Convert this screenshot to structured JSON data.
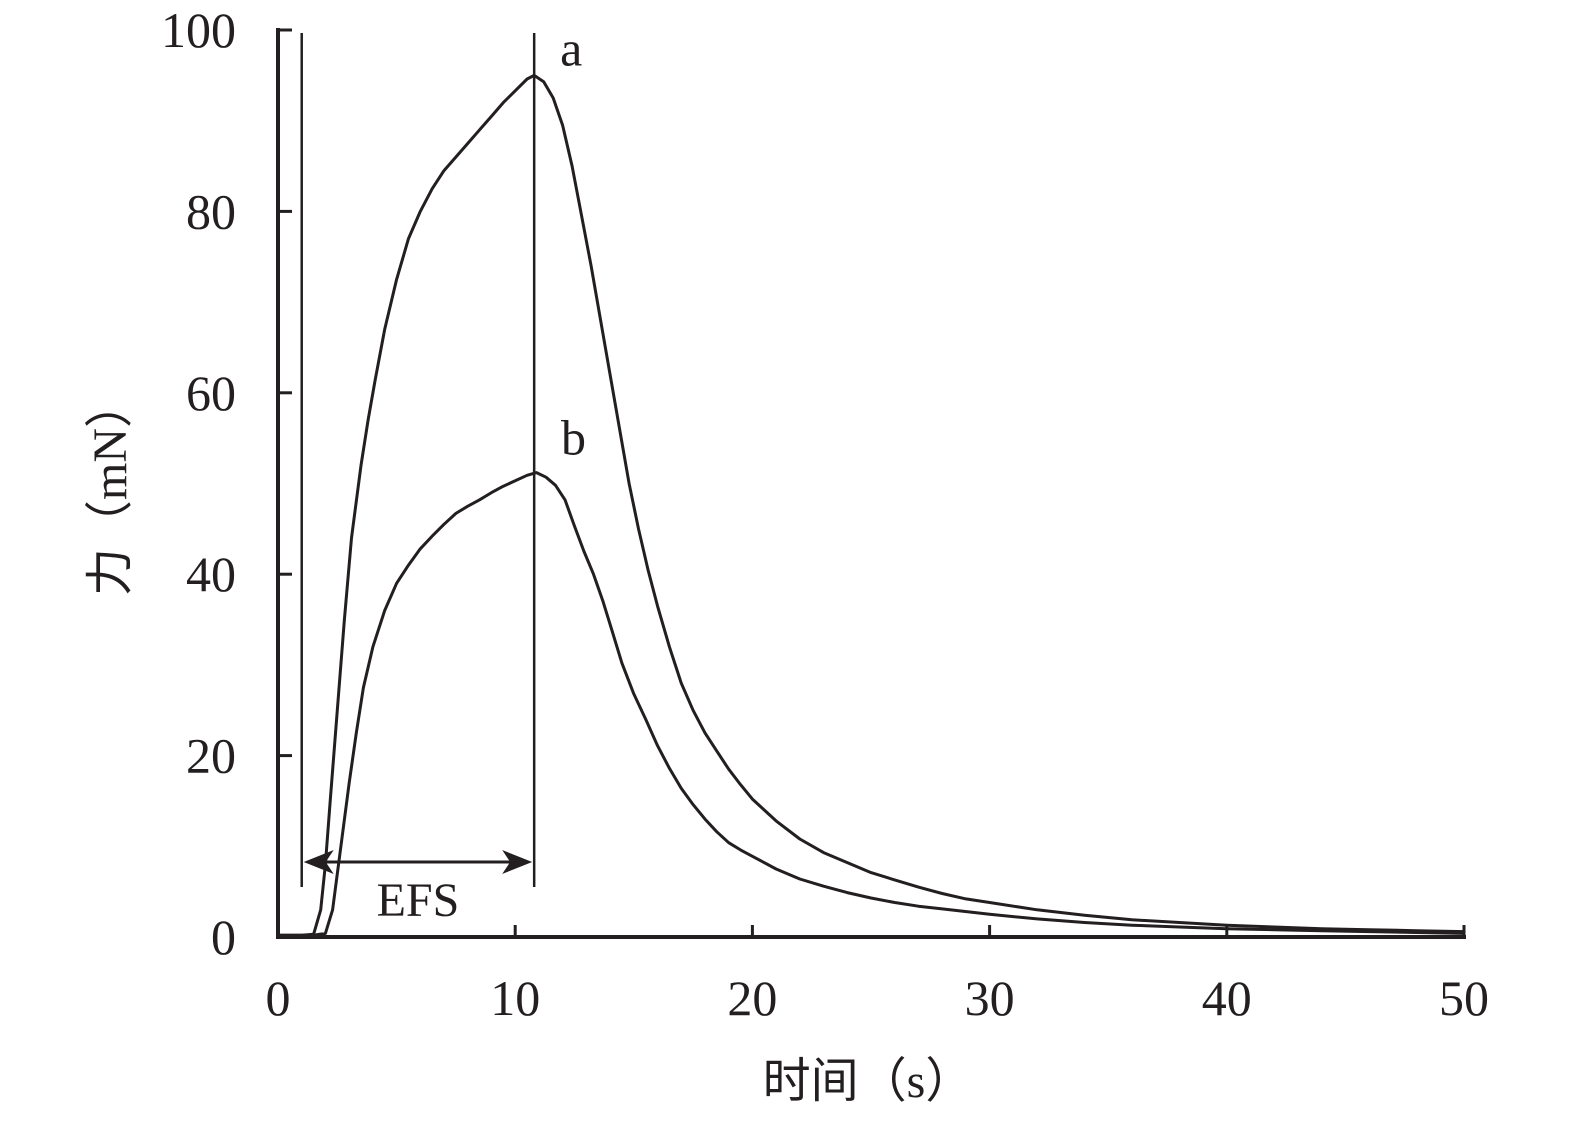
{
  "colors": {
    "ink": "#231f20",
    "background": "#ffffff"
  },
  "chart_data": {
    "type": "line",
    "title": "",
    "xlabel": "时间（s）",
    "ylabel": "力（mN）",
    "xlim": [
      0,
      50
    ],
    "ylim": [
      0,
      100
    ],
    "xticks": [
      0,
      10,
      20,
      30,
      40,
      50
    ],
    "yticks": [
      0,
      20,
      40,
      60,
      80,
      100
    ],
    "grid": false,
    "legend": "none",
    "series": [
      {
        "name": "a",
        "x": [
          0,
          1.0,
          1.5,
          1.8,
          2.0,
          2.2,
          2.5,
          2.8,
          3.1,
          3.5,
          3.8,
          4.1,
          4.5,
          5.0,
          5.5,
          6.0,
          6.5,
          7.0,
          7.5,
          8.0,
          8.5,
          9.0,
          9.5,
          10.0,
          10.5,
          10.8,
          11.2,
          11.6,
          12.0,
          12.4,
          12.8,
          13.2,
          13.6,
          14.0,
          14.4,
          14.8,
          15.2,
          15.6,
          16.0,
          16.5,
          17.0,
          17.5,
          18.0,
          18.5,
          19.0,
          19.5,
          20.0,
          21.0,
          22.0,
          23.0,
          24.0,
          25.0,
          26.0,
          27.0,
          28.0,
          29.0,
          30.0,
          32.0,
          34.0,
          36.0,
          38.0,
          40.0,
          42.0,
          44.0,
          46.0,
          48.0,
          50.0
        ],
        "y": [
          0.2,
          0.2,
          0.3,
          3,
          8,
          15,
          25,
          35,
          44,
          52,
          57,
          61.5,
          67,
          72.5,
          77,
          80,
          82.5,
          84.5,
          86,
          87.5,
          89,
          90.5,
          92,
          93.3,
          94.6,
          95,
          94.3,
          92.5,
          89.5,
          85,
          79.5,
          74,
          68,
          62,
          56,
          50,
          45,
          40.5,
          36.5,
          32,
          28,
          25,
          22.5,
          20.5,
          18.5,
          16.8,
          15.2,
          12.8,
          10.8,
          9.3,
          8.2,
          7.1,
          6.3,
          5.5,
          4.8,
          4.2,
          3.8,
          3.0,
          2.4,
          1.9,
          1.6,
          1.3,
          1.1,
          0.9,
          0.8,
          0.7,
          0.6
        ]
      },
      {
        "name": "b",
        "x": [
          0,
          1.5,
          2.0,
          2.3,
          2.6,
          3.0,
          3.3,
          3.6,
          4.0,
          4.5,
          5.0,
          5.5,
          6.0,
          6.5,
          7.0,
          7.5,
          8.0,
          8.5,
          9.0,
          9.5,
          10.0,
          10.5,
          10.9,
          11.3,
          11.7,
          12.1,
          12.5,
          12.9,
          13.3,
          13.7,
          14.1,
          14.5,
          15.0,
          15.5,
          16.0,
          16.5,
          17.0,
          17.5,
          18.0,
          18.5,
          19.0,
          19.5,
          20.0,
          21.0,
          22.0,
          23.0,
          24.0,
          25.0,
          26.0,
          27.0,
          28.0,
          30.0,
          32.0,
          34.0,
          36.0,
          38.0,
          40.0,
          42.0,
          44.0,
          46.0,
          48.0,
          50.0
        ],
        "y": [
          0.2,
          0.2,
          0.4,
          3,
          9,
          17,
          22.5,
          27.5,
          32,
          36,
          39,
          41,
          42.8,
          44.2,
          45.5,
          46.7,
          47.5,
          48.2,
          49,
          49.7,
          50.3,
          50.9,
          51.2,
          50.7,
          49.8,
          48.2,
          45.3,
          42.5,
          40,
          37,
          33.6,
          30.2,
          26.8,
          24,
          21.1,
          18.6,
          16.4,
          14.6,
          13,
          11.6,
          10.4,
          9.6,
          8.9,
          7.5,
          6.4,
          5.6,
          4.9,
          4.3,
          3.8,
          3.4,
          3.1,
          2.5,
          2.0,
          1.6,
          1.3,
          1.1,
          0.9,
          0.8,
          0.7,
          0.6,
          0.5,
          0.4
        ]
      }
    ],
    "annotations": [
      {
        "text": "EFS",
        "type": "interval",
        "x_start": 1.0,
        "x_end": 10.8
      }
    ]
  }
}
